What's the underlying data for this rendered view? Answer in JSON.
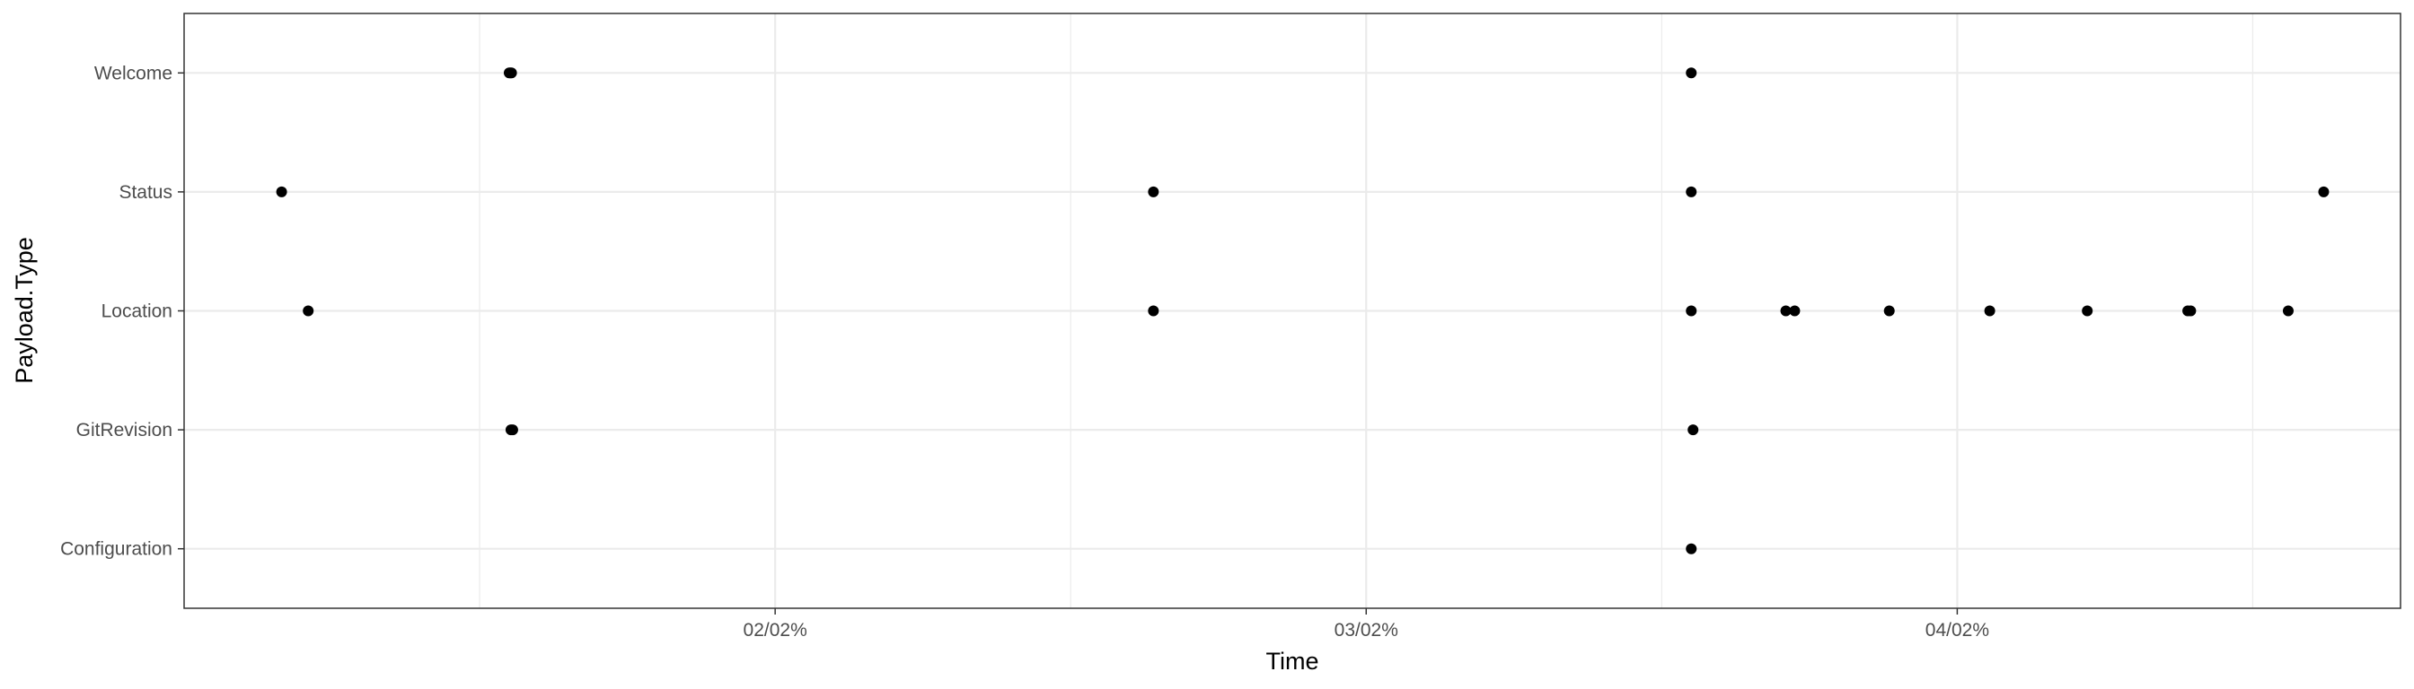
{
  "chart_data": {
    "type": "scatter",
    "xlabel": "Time",
    "ylabel": "Payload.Type",
    "x_ticks": [
      "02/02%",
      "03/02%",
      "04/02%"
    ],
    "x_tick_values": [
      2,
      3,
      4
    ],
    "xlim": [
      1.0,
      4.75
    ],
    "categories": [
      "Configuration",
      "GitRevision",
      "Location",
      "Status",
      "Welcome"
    ],
    "grid": true,
    "legend": "none",
    "point_color": "#000000",
    "points": [
      {
        "category": "Welcome",
        "x": 1.55
      },
      {
        "category": "Welcome",
        "x": 1.552
      },
      {
        "category": "Welcome",
        "x": 1.554
      },
      {
        "category": "Welcome",
        "x": 3.55
      },
      {
        "category": "Status",
        "x": 1.165
      },
      {
        "category": "Status",
        "x": 2.64
      },
      {
        "category": "Status",
        "x": 3.55
      },
      {
        "category": "Status",
        "x": 4.62
      },
      {
        "category": "Location",
        "x": 1.21
      },
      {
        "category": "Location",
        "x": 2.64
      },
      {
        "category": "Location",
        "x": 3.55
      },
      {
        "category": "Location",
        "x": 3.71
      },
      {
        "category": "Location",
        "x": 3.725
      },
      {
        "category": "Location",
        "x": 3.885
      },
      {
        "category": "Location",
        "x": 4.055
      },
      {
        "category": "Location",
        "x": 4.22
      },
      {
        "category": "Location",
        "x": 4.39
      },
      {
        "category": "Location",
        "x": 4.395
      },
      {
        "category": "Location",
        "x": 4.56
      },
      {
        "category": "GitRevision",
        "x": 1.553
      },
      {
        "category": "GitRevision",
        "x": 1.556
      },
      {
        "category": "GitRevision",
        "x": 3.553
      },
      {
        "category": "Configuration",
        "x": 3.55
      }
    ]
  }
}
